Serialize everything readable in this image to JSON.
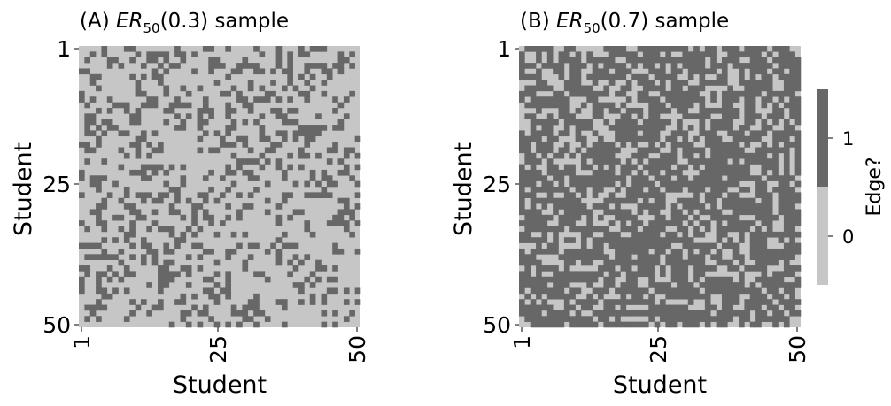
{
  "colors": {
    "edge": "#676767",
    "no_edge": "#c6c6c6"
  },
  "chart_data": [
    {
      "type": "heatmap",
      "panel_label": "(A)",
      "title_symbol": "ER",
      "title_subscript": "50",
      "title_param": "(0.3)",
      "title_suffix": "sample",
      "xlabel": "Student",
      "ylabel": "Student",
      "n": 50,
      "p": 0.3,
      "symmetric": true,
      "x_ticks": [
        "1",
        "25",
        "50"
      ],
      "y_ticks": [
        "1",
        "25",
        "50"
      ],
      "note": "50x50 symmetric adjacency matrix of a sampled Erdos-Renyi graph with edge probability 0.3; individual cells approximated"
    },
    {
      "type": "heatmap",
      "panel_label": "(B)",
      "title_symbol": "ER",
      "title_subscript": "50",
      "title_param": "(0.7)",
      "title_suffix": "sample",
      "xlabel": "Student",
      "ylabel": "Student",
      "n": 50,
      "p": 0.7,
      "symmetric": true,
      "x_ticks": [
        "1",
        "25",
        "50"
      ],
      "y_ticks": [
        "1",
        "25",
        "50"
      ],
      "note": "50x50 symmetric adjacency matrix of a sampled Erdos-Renyi graph with edge probability 0.7; individual cells approximated"
    }
  ],
  "colorbar": {
    "label": "Edge?",
    "ticks": [
      "1",
      "0"
    ],
    "values": [
      1,
      0
    ]
  }
}
